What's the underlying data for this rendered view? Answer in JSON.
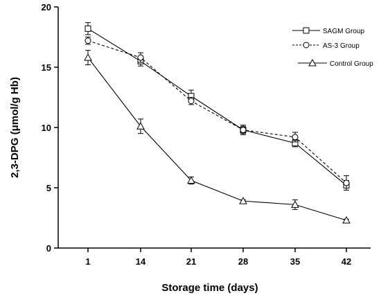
{
  "chart_data": {
    "type": "line",
    "title": "",
    "xlabel": "Storage time (days)",
    "ylabel": "2,3-DPG (μmol/g Hb)",
    "x": [
      1,
      14,
      21,
      28,
      35,
      42
    ],
    "x_tick_labels": [
      "1",
      "14",
      "21",
      "28",
      "35",
      "42"
    ],
    "ylim": [
      0,
      20
    ],
    "y_ticks": [
      0,
      5,
      10,
      15,
      20
    ],
    "y_tick_labels": [
      "0",
      "5",
      "10",
      "15",
      "20"
    ],
    "grid": false,
    "legend_position": "top-right",
    "series": [
      {
        "name": "SAGM Group",
        "marker": "square",
        "line_style": "solid",
        "color": "#000000",
        "values": [
          18.2,
          15.5,
          12.6,
          9.8,
          8.7,
          5.2
        ],
        "errors": [
          0.5,
          0.4,
          0.5,
          0.4,
          0.3,
          0.4
        ]
      },
      {
        "name": "AS-3 Group",
        "marker": "circle",
        "line_style": "dashed",
        "color": "#000000",
        "values": [
          17.2,
          15.8,
          12.2,
          9.8,
          9.2,
          5.4
        ],
        "errors": [
          0.3,
          0.4,
          0.3,
          0.3,
          0.4,
          0.6
        ]
      },
      {
        "name": "Control Group",
        "marker": "triangle",
        "line_style": "solid",
        "color": "#000000",
        "values": [
          15.8,
          10.1,
          5.6,
          3.9,
          3.6,
          2.3
        ],
        "errors": [
          0.6,
          0.6,
          0.3,
          0.1,
          0.4,
          0.1
        ]
      }
    ]
  }
}
